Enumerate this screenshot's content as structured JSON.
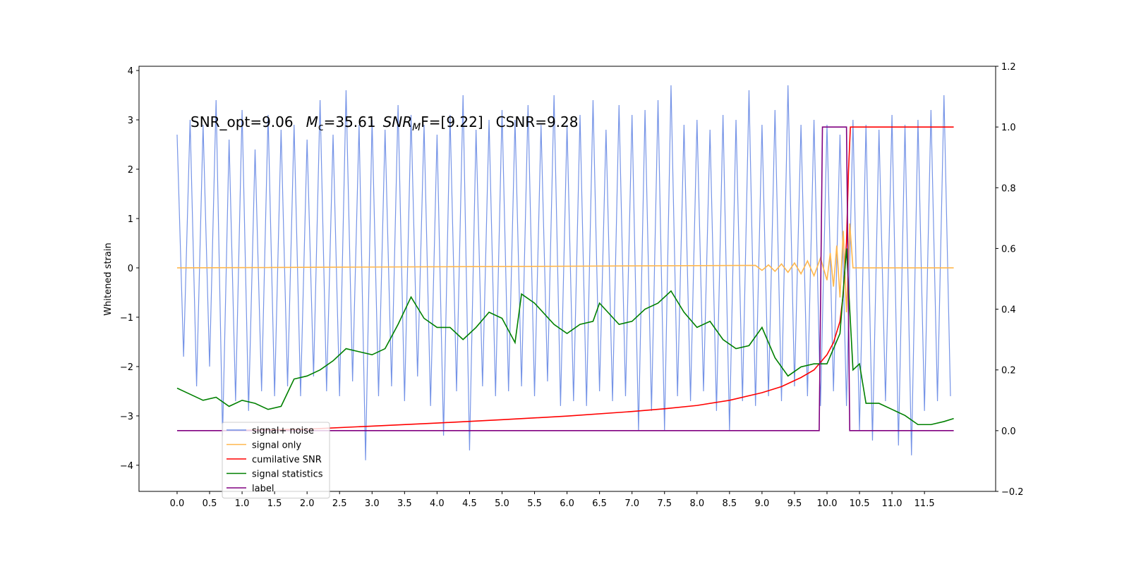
{
  "chart_data": {
    "type": "line",
    "annotation": [
      "SNR_opt=9.06",
      "M",
      "c",
      "=35.61",
      "SNR",
      "M",
      "F=[9.22]",
      "CSNR=9.28"
    ],
    "ylabel": "Whitened strain",
    "xlim": [
      -0.586,
      12.595
    ],
    "ylim": [
      -4.53,
      4.086
    ],
    "y2lim": [
      -0.2,
      1.2
    ],
    "xticks": [
      {
        "value": 0,
        "label": "0.0"
      },
      {
        "value": 0.5,
        "label": "0.5"
      },
      {
        "value": 1,
        "label": "1.0"
      },
      {
        "value": 1.5,
        "label": "1.5"
      },
      {
        "value": 2,
        "label": "2.0"
      },
      {
        "value": 2.5,
        "label": "2.5"
      },
      {
        "value": 3,
        "label": "3.0"
      },
      {
        "value": 3.5,
        "label": "3.5"
      },
      {
        "value": 4,
        "label": "4.0"
      },
      {
        "value": 4.5,
        "label": "4.5"
      },
      {
        "value": 5,
        "label": "5.0"
      },
      {
        "value": 5.5,
        "label": "5.5"
      },
      {
        "value": 6,
        "label": "6.0"
      },
      {
        "value": 6.5,
        "label": "6.5"
      },
      {
        "value": 7,
        "label": "7.0"
      },
      {
        "value": 7.5,
        "label": "7.5"
      },
      {
        "value": 8,
        "label": "8.0"
      },
      {
        "value": 8.5,
        "label": "8.5"
      },
      {
        "value": 9,
        "label": "9.0"
      },
      {
        "value": 9.5,
        "label": "9.5"
      },
      {
        "value": 10,
        "label": "10.0"
      },
      {
        "value": 10.5,
        "label": "10.5"
      },
      {
        "value": 11,
        "label": "11.0"
      },
      {
        "value": 11.5,
        "label": "11.5"
      }
    ],
    "yticks": [
      {
        "value": -4,
        "label": "−4"
      },
      {
        "value": -3,
        "label": "−3"
      },
      {
        "value": -2,
        "label": "−2"
      },
      {
        "value": -1,
        "label": "−1"
      },
      0,
      1,
      2,
      3,
      4
    ],
    "y2ticks": [
      {
        "value": -0.2,
        "label": "−0.2"
      },
      {
        "value": 0,
        "label": "0.0"
      },
      {
        "value": 0.2,
        "label": "0.2"
      },
      {
        "value": 0.4,
        "label": "0.4"
      },
      {
        "value": 0.6,
        "label": "0.6"
      },
      {
        "value": 0.8,
        "label": "0.8"
      },
      {
        "value": 1,
        "label": "1.0"
      },
      {
        "value": 1.2,
        "label": "1.2"
      }
    ],
    "grid": false,
    "legend_loc": "lower left",
    "series": [
      {
        "name": "signal+ noise",
        "color": "#6f8ee6",
        "x": [
          0,
          0.1,
          0.2,
          0.3,
          0.4,
          0.5,
          0.6,
          0.7,
          0.8,
          0.9,
          1,
          1.1,
          1.2,
          1.3,
          1.4,
          1.5,
          1.6,
          1.7,
          1.8,
          1.9,
          2,
          2.1,
          2.2,
          2.3,
          2.4,
          2.5,
          2.6,
          2.7,
          2.8,
          2.9,
          3,
          3.1,
          3.2,
          3.3,
          3.4,
          3.5,
          3.6,
          3.7,
          3.8,
          3.9,
          4,
          4.1,
          4.2,
          4.3,
          4.4,
          4.5,
          4.6,
          4.7,
          4.8,
          4.9,
          5,
          5.1,
          5.2,
          5.3,
          5.4,
          5.5,
          5.6,
          5.7,
          5.8,
          5.9,
          6,
          6.1,
          6.2,
          6.3,
          6.4,
          6.5,
          6.6,
          6.7,
          6.8,
          6.9,
          7,
          7.1,
          7.2,
          7.3,
          7.4,
          7.5,
          7.6,
          7.7,
          7.8,
          7.9,
          8,
          8.1,
          8.2,
          8.3,
          8.4,
          8.5,
          8.6,
          8.7,
          8.8,
          8.9,
          9,
          9.1,
          9.2,
          9.3,
          9.4,
          9.5,
          9.6,
          9.7,
          9.8,
          9.9,
          10,
          10.1,
          10.2,
          10.3,
          10.4,
          10.5,
          10.6,
          10.7,
          10.8,
          10.9,
          11,
          11.1,
          11.2,
          11.3,
          11.4,
          11.5,
          11.6,
          11.7,
          11.8,
          11.9
        ],
        "values": [
          2.7,
          -1.8,
          3.0,
          -2.4,
          2.9,
          -2.0,
          3.4,
          -3.4,
          2.6,
          -2.7,
          3.2,
          -2.9,
          2.4,
          -2.5,
          3.1,
          -2.6,
          2.8,
          -2.4,
          2.9,
          -2.6,
          2.6,
          -2.2,
          3.4,
          -2.5,
          2.7,
          -2.6,
          3.6,
          -2.3,
          2.9,
          -3.9,
          3.0,
          -2.6,
          2.8,
          -2.4,
          3.3,
          -2.7,
          3.1,
          -2.2,
          2.9,
          -2.8,
          2.7,
          -3.4,
          3.1,
          -2.5,
          3.5,
          -3.7,
          2.8,
          -2.4,
          3.0,
          -2.6,
          3.2,
          -2.5,
          3.0,
          -2.4,
          3.3,
          -2.6,
          2.9,
          -2.3,
          3.5,
          -2.8,
          2.9,
          -2.7,
          3.1,
          -2.8,
          3.4,
          -2.5,
          2.8,
          -2.7,
          3.3,
          -2.6,
          3.1,
          -3.3,
          3.2,
          -2.9,
          3.4,
          -3.3,
          3.7,
          -2.6,
          2.9,
          -2.7,
          3.0,
          -2.5,
          2.8,
          -2.9,
          3.1,
          -3.3,
          3.0,
          -2.7,
          3.6,
          -2.8,
          2.9,
          -2.6,
          3.2,
          -2.7,
          3.7,
          -2.4,
          2.9,
          -2.6,
          3.0,
          -2.8,
          2.9,
          -2.5,
          2.7,
          -2.8,
          3.0,
          -3.3,
          2.9,
          -3.5,
          2.8,
          -2.7,
          3.1,
          -3.6,
          2.9,
          -3.8,
          3.0,
          -2.9,
          3.2,
          -2.7,
          3.5,
          -2.6
        ]
      },
      {
        "name": "signal only",
        "color": "#ffb74d",
        "x": [
          0,
          8.9,
          9.0,
          9.1,
          9.2,
          9.3,
          9.4,
          9.5,
          9.6,
          9.7,
          9.8,
          9.9,
          10.0,
          10.05,
          10.1,
          10.15,
          10.2,
          10.25,
          10.3,
          10.35,
          10.4,
          11.95
        ],
        "values": [
          0,
          0.05,
          -0.05,
          0.06,
          -0.07,
          0.08,
          -0.09,
          0.1,
          -0.12,
          0.14,
          -0.16,
          0.2,
          -0.25,
          0.3,
          -0.38,
          0.45,
          -0.6,
          0.75,
          -0.9,
          0.9,
          0,
          0
        ]
      },
      {
        "name": "cumilative SNR",
        "color": "#ff0000",
        "axis": "y2",
        "x": [
          0.7,
          2,
          3,
          4,
          5,
          6,
          7,
          7.5,
          8,
          8.5,
          9,
          9.3,
          9.6,
          9.8,
          10.0,
          10.1,
          10.2,
          10.25,
          10.3,
          10.33,
          10.36,
          10.4,
          11.95
        ],
        "values": [
          0,
          0.005,
          0.015,
          0.025,
          0.036,
          0.048,
          0.063,
          0.072,
          0.083,
          0.1,
          0.125,
          0.145,
          0.175,
          0.2,
          0.25,
          0.29,
          0.36,
          0.45,
          0.62,
          0.85,
          1,
          1,
          1
        ]
      },
      {
        "name": "signal statistics",
        "color": "#008000",
        "axis": "y2",
        "x": [
          0,
          0.2,
          0.4,
          0.6,
          0.8,
          1.0,
          1.2,
          1.4,
          1.6,
          1.8,
          2.0,
          2.2,
          2.4,
          2.6,
          2.8,
          3.0,
          3.2,
          3.4,
          3.6,
          3.8,
          4.0,
          4.2,
          4.4,
          4.6,
          4.8,
          5.0,
          5.2,
          5.3,
          5.5,
          5.8,
          6.0,
          6.2,
          6.4,
          6.5,
          6.8,
          7.0,
          7.2,
          7.4,
          7.6,
          7.8,
          8.0,
          8.2,
          8.4,
          8.6,
          8.8,
          9.0,
          9.2,
          9.4,
          9.6,
          9.8,
          10.0,
          10.2,
          10.3,
          10.4,
          10.5,
          10.6,
          10.8,
          11.0,
          11.2,
          11.4,
          11.6,
          11.8,
          11.95
        ],
        "values": [
          0.14,
          0.12,
          0.1,
          0.11,
          0.08,
          0.1,
          0.09,
          0.07,
          0.08,
          0.17,
          0.18,
          0.2,
          0.23,
          0.27,
          0.26,
          0.25,
          0.27,
          0.35,
          0.44,
          0.37,
          0.34,
          0.34,
          0.3,
          0.34,
          0.39,
          0.37,
          0.29,
          0.45,
          0.42,
          0.35,
          0.32,
          0.35,
          0.36,
          0.42,
          0.35,
          0.36,
          0.4,
          0.42,
          0.46,
          0.39,
          0.34,
          0.36,
          0.3,
          0.27,
          0.28,
          0.34,
          0.24,
          0.18,
          0.21,
          0.22,
          0.22,
          0.32,
          0.6,
          0.2,
          0.22,
          0.09,
          0.09,
          0.07,
          0.05,
          0.02,
          0.02,
          0.03,
          0.04
        ]
      },
      {
        "name": "label",
        "color": "#800080",
        "axis": "y2",
        "x": [
          0,
          9.88,
          9.93,
          10.3,
          10.35,
          11.95
        ],
        "values": [
          0,
          0,
          1,
          1,
          0,
          0
        ]
      }
    ]
  }
}
